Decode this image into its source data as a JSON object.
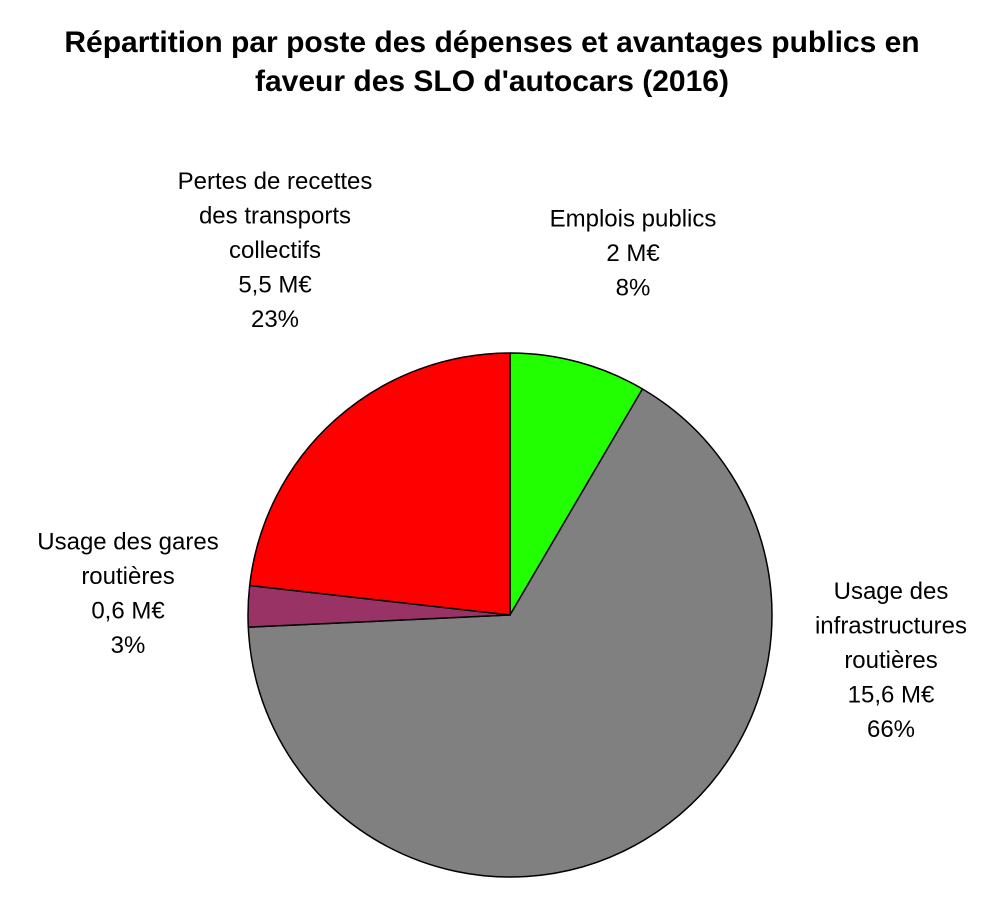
{
  "chart_data": {
    "type": "pie",
    "title_lines": [
      "Répartition par poste des dépenses et avantages publics en",
      "faveur des SLO d'autocars (2016)"
    ],
    "unit": "M€",
    "slices": [
      {
        "label_lines": [
          "Emplois publics"
        ],
        "value_text": "2 M€",
        "value": 2,
        "percent_text": "8%",
        "color": "#22ff00"
      },
      {
        "label_lines": [
          "Usage des",
          "infrastructures",
          "routières"
        ],
        "value_text": "15,6 M€",
        "value": 15.6,
        "percent_text": "66%",
        "color": "#808080"
      },
      {
        "label_lines": [
          "Usage des gares",
          "routières"
        ],
        "value_text": "0,6 M€",
        "value": 0.6,
        "percent_text": "3%",
        "color": "#993366"
      },
      {
        "label_lines": [
          "Pertes de recettes",
          "des transports",
          "collectifs"
        ],
        "value_text": "5,5 M€",
        "value": 5.5,
        "percent_text": "23%",
        "color": "#ff0000"
      }
    ]
  }
}
